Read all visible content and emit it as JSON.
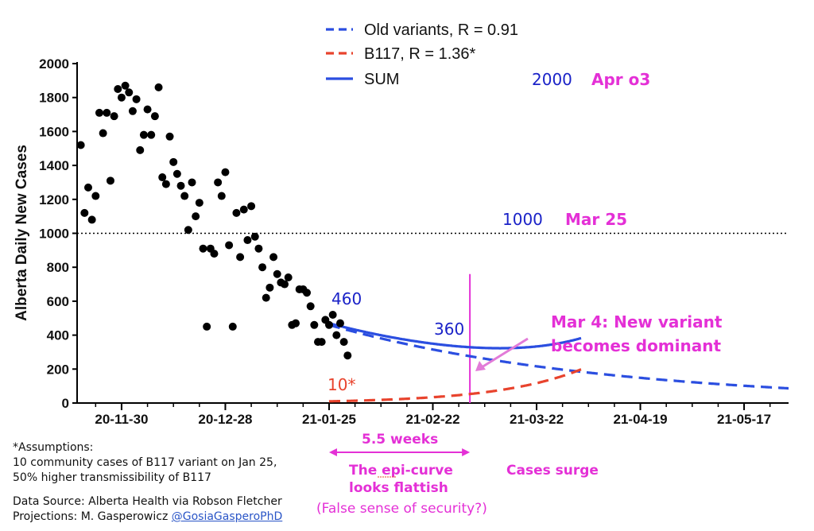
{
  "chart_data": {
    "type": "line",
    "ylabel": "Alberta Daily New Cases",
    "xlabel": "",
    "ylim": [
      0,
      2000
    ],
    "yticks": [
      0,
      200,
      400,
      600,
      800,
      1000,
      1200,
      1400,
      1600,
      1800,
      2000
    ],
    "x_start": "2020-11-18",
    "x_end": "2021-05-29",
    "xticks": [
      {
        "label": "20-11-30",
        "date": "2020-11-30"
      },
      {
        "label": "20-12-28",
        "date": "2020-12-28"
      },
      {
        "label": "21-01-25",
        "date": "2021-01-25"
      },
      {
        "label": "21-02-22",
        "date": "2021-02-22"
      },
      {
        "label": "21-03-22",
        "date": "2021-03-22"
      },
      {
        "label": "21-04-19",
        "date": "2021-04-19"
      },
      {
        "label": "21-05-17",
        "date": "2021-05-17"
      }
    ],
    "reference_line": {
      "y": 1000,
      "style": "dotted"
    },
    "legend": {
      "placement": "top-center",
      "entries": [
        {
          "label": "Old variants, R = 0.91",
          "color": "#2b4ee0",
          "style": "dashed"
        },
        {
          "label": "B117, R = 1.36*",
          "color": "#e8432d",
          "style": "dashed"
        },
        {
          "label": "SUM",
          "color": "#2b4ee0",
          "style": "solid"
        }
      ]
    },
    "observed": [
      {
        "x": "2020-11-19",
        "y": 1520
      },
      {
        "x": "2020-11-20",
        "y": 1120
      },
      {
        "x": "2020-11-21",
        "y": 1270
      },
      {
        "x": "2020-11-22",
        "y": 1080
      },
      {
        "x": "2020-11-23",
        "y": 1220
      },
      {
        "x": "2020-11-24",
        "y": 1710
      },
      {
        "x": "2020-11-25",
        "y": 1590
      },
      {
        "x": "2020-11-26",
        "y": 1710
      },
      {
        "x": "2020-11-27",
        "y": 1310
      },
      {
        "x": "2020-11-28",
        "y": 1690
      },
      {
        "x": "2020-11-29",
        "y": 1850
      },
      {
        "x": "2020-11-30",
        "y": 1800
      },
      {
        "x": "2020-12-01",
        "y": 1870
      },
      {
        "x": "2020-12-02",
        "y": 1830
      },
      {
        "x": "2020-12-03",
        "y": 1720
      },
      {
        "x": "2020-12-04",
        "y": 1790
      },
      {
        "x": "2020-12-05",
        "y": 1490
      },
      {
        "x": "2020-12-06",
        "y": 1580
      },
      {
        "x": "2020-12-07",
        "y": 1730
      },
      {
        "x": "2020-12-08",
        "y": 1580
      },
      {
        "x": "2020-12-09",
        "y": 1690
      },
      {
        "x": "2020-12-10",
        "y": 1860
      },
      {
        "x": "2020-12-11",
        "y": 1330
      },
      {
        "x": "2020-12-12",
        "y": 1290
      },
      {
        "x": "2020-12-13",
        "y": 1570
      },
      {
        "x": "2020-12-14",
        "y": 1420
      },
      {
        "x": "2020-12-15",
        "y": 1350
      },
      {
        "x": "2020-12-16",
        "y": 1280
      },
      {
        "x": "2020-12-17",
        "y": 1220
      },
      {
        "x": "2020-12-18",
        "y": 1020
      },
      {
        "x": "2020-12-19",
        "y": 1300
      },
      {
        "x": "2020-12-20",
        "y": 1100
      },
      {
        "x": "2020-12-21",
        "y": 1180
      },
      {
        "x": "2020-12-22",
        "y": 910
      },
      {
        "x": "2020-12-23",
        "y": 450
      },
      {
        "x": "2020-12-24",
        "y": 910
      },
      {
        "x": "2020-12-25",
        "y": 880
      },
      {
        "x": "2020-12-26",
        "y": 1300
      },
      {
        "x": "2020-12-27",
        "y": 1220
      },
      {
        "x": "2020-12-28",
        "y": 1360
      },
      {
        "x": "2020-12-29",
        "y": 930
      },
      {
        "x": "2020-12-30",
        "y": 450
      },
      {
        "x": "2020-12-31",
        "y": 1120
      },
      {
        "x": "2021-01-01",
        "y": 860
      },
      {
        "x": "2021-01-02",
        "y": 1140
      },
      {
        "x": "2021-01-03",
        "y": 960
      },
      {
        "x": "2021-01-04",
        "y": 1160
      },
      {
        "x": "2021-01-05",
        "y": 980
      },
      {
        "x": "2021-01-06",
        "y": 910
      },
      {
        "x": "2021-01-07",
        "y": 800
      },
      {
        "x": "2021-01-08",
        "y": 620
      },
      {
        "x": "2021-01-09",
        "y": 680
      },
      {
        "x": "2021-01-10",
        "y": 860
      },
      {
        "x": "2021-01-11",
        "y": 760
      },
      {
        "x": "2021-01-12",
        "y": 710
      },
      {
        "x": "2021-01-13",
        "y": 700
      },
      {
        "x": "2021-01-14",
        "y": 740
      },
      {
        "x": "2021-01-15",
        "y": 460
      },
      {
        "x": "2021-01-16",
        "y": 470
      },
      {
        "x": "2021-01-17",
        "y": 670
      },
      {
        "x": "2021-01-18",
        "y": 670
      },
      {
        "x": "2021-01-19",
        "y": 650
      },
      {
        "x": "2021-01-20",
        "y": 570
      },
      {
        "x": "2021-01-21",
        "y": 460
      },
      {
        "x": "2021-01-22",
        "y": 360
      },
      {
        "x": "2021-01-23",
        "y": 360
      },
      {
        "x": "2021-01-24",
        "y": 490
      },
      {
        "x": "2021-01-25",
        "y": 460
      },
      {
        "x": "2021-01-26",
        "y": 520
      },
      {
        "x": "2021-01-27",
        "y": 400
      },
      {
        "x": "2021-01-28",
        "y": 470
      },
      {
        "x": "2021-01-29",
        "y": 360
      },
      {
        "x": "2021-01-30",
        "y": 280
      }
    ],
    "model": {
      "start": "2021-01-25",
      "old_variants": {
        "initial": 460,
        "R": 0.91
      },
      "b117": {
        "initial": 10,
        "R": 1.36
      },
      "sum_end": "2021-04-03",
      "b117_end": "2021-04-03",
      "old_end": "2021-05-29"
    },
    "annotations": [
      {
        "text": "2000",
        "color": "#1a22c8"
      },
      {
        "text": "Apr o3",
        "color": "#e430d6"
      },
      {
        "text": "1000",
        "color": "#1a22c8"
      },
      {
        "text": "Mar 25",
        "color": "#e430d6"
      },
      {
        "text": "460",
        "color": "#1a22c8"
      },
      {
        "text": "360",
        "color": "#1a22c8"
      },
      {
        "text": "10*",
        "color": "#e8432d"
      },
      {
        "text": "Mar 4: New variant",
        "color": "#e430d6"
      },
      {
        "text": "becomes dominant",
        "color": "#e430d6"
      },
      {
        "text": "5.5 weeks",
        "color": "#e430d6"
      },
      {
        "text": "The epi-curve",
        "color": "#e430d6"
      },
      {
        "text": "looks flattish",
        "color": "#e430d6"
      },
      {
        "text": "(False sense of security?)",
        "color": "#e430d6"
      },
      {
        "text": "Cases surge",
        "color": "#e430d6"
      }
    ],
    "marker_date": "2021-03-04"
  },
  "footnotes": {
    "assumptions_title": "*Assumptions:",
    "assumption_1": "10 community cases of B117 variant on Jan 25,",
    "assumption_2": "50% higher transmissibility of B117",
    "data_source": "Data Source: Alberta Health via Robson Fletcher",
    "projections_prefix": "Projections: M. Gasperowicz ",
    "projections_handle": "@GosiaGasperoPhD"
  }
}
